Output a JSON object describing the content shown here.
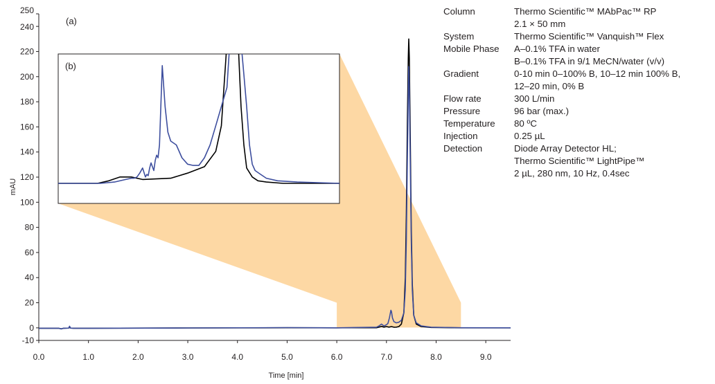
{
  "chart_data": {
    "type": "line",
    "xlabel": "Time [min]",
    "ylabel": "mAU",
    "xlim": [
      0.0,
      9.5
    ],
    "ylim": [
      -10,
      250
    ],
    "x_ticks": [
      "0.0",
      "1.0",
      "2.0",
      "3.0",
      "4.0",
      "5.0",
      "6.0",
      "7.0",
      "8.0",
      "9.0"
    ],
    "y_ticks": [
      "-10",
      "0",
      "20",
      "40",
      "60",
      "80",
      "100",
      "120",
      "140",
      "160",
      "180",
      "200",
      "220",
      "240",
      "250"
    ],
    "series": [
      {
        "color": "#000000",
        "x": [
          0.0,
          0.4,
          0.45,
          0.5,
          0.6,
          0.62,
          0.64,
          0.7,
          1.0,
          3.0,
          5.0,
          6.0,
          6.8,
          6.85,
          6.9,
          6.95,
          7.0,
          7.05,
          7.1,
          7.15,
          7.2,
          7.25,
          7.3,
          7.35,
          7.38,
          7.4,
          7.42,
          7.44,
          7.45,
          7.46,
          7.48,
          7.5,
          7.52,
          7.55,
          7.6,
          7.7,
          7.9,
          8.5,
          9.5
        ],
        "y": [
          -0.3,
          -0.3,
          -0.8,
          -0.3,
          -0.2,
          0.4,
          -0.2,
          -0.3,
          -0.3,
          -0.1,
          0.1,
          0.0,
          0.1,
          0.5,
          1.2,
          0.6,
          1.0,
          0.6,
          1.0,
          0.5,
          0.6,
          1.0,
          3.0,
          12.0,
          40.0,
          90.0,
          160.0,
          215.0,
          230.0,
          215.0,
          150.0,
          80.0,
          35.0,
          10.0,
          3.0,
          1.0,
          0.3,
          0.0,
          0.0
        ]
      },
      {
        "color": "#3d4e9e",
        "x": [
          0.0,
          0.4,
          0.45,
          0.5,
          0.6,
          0.62,
          0.64,
          0.7,
          1.0,
          3.0,
          5.0,
          6.0,
          6.8,
          6.85,
          6.9,
          6.95,
          7.0,
          7.03,
          7.06,
          7.09,
          7.1,
          7.12,
          7.15,
          7.2,
          7.25,
          7.3,
          7.35,
          7.38,
          7.4,
          7.42,
          7.44,
          7.45,
          7.46,
          7.48,
          7.5,
          7.52,
          7.55,
          7.6,
          7.7,
          7.9,
          8.5,
          9.5
        ],
        "y": [
          -0.3,
          -0.3,
          -0.8,
          -0.3,
          -0.2,
          1.3,
          -0.2,
          -0.3,
          -0.3,
          -0.1,
          0.2,
          0.0,
          0.5,
          1.5,
          3.0,
          1.5,
          2.5,
          3.5,
          8.0,
          14.0,
          13.0,
          8.0,
          5.0,
          4.0,
          4.5,
          6.0,
          12.0,
          30.0,
          70.0,
          130.0,
          185.0,
          208.0,
          190.0,
          130.0,
          70.0,
          30.0,
          10.0,
          4.0,
          1.5,
          0.5,
          0.1,
          0.0
        ]
      }
    ],
    "zoom_region": {
      "x": [
        6.0,
        8.5
      ]
    },
    "inset": {
      "label": "(b)",
      "series": [
        {
          "color": "#000000",
          "x": [
            0.0,
            0.06,
            0.1,
            0.14,
            0.18,
            0.22,
            0.26,
            0.3,
            0.4,
            0.46,
            0.52,
            0.56,
            0.58,
            0.6,
            0.61,
            0.62,
            0.63,
            0.64,
            0.65,
            0.66,
            0.67,
            0.69,
            0.71,
            0.74,
            0.8,
            0.9,
            1.0
          ],
          "y": [
            0.0,
            0.0,
            0.0,
            0.0,
            0.02,
            0.05,
            0.05,
            0.03,
            0.04,
            0.08,
            0.13,
            0.25,
            0.45,
            1.0,
            1.0,
            1.0,
            1.0,
            1.0,
            0.6,
            0.3,
            0.12,
            0.05,
            0.02,
            0.01,
            0.0,
            0.0,
            0.0
          ]
        },
        {
          "color": "#3d4e9e",
          "x": [
            0.0,
            0.15,
            0.2,
            0.24,
            0.26,
            0.27,
            0.28,
            0.29,
            0.3,
            0.31,
            0.315,
            0.32,
            0.325,
            0.33,
            0.34,
            0.345,
            0.35,
            0.355,
            0.36,
            0.37,
            0.38,
            0.39,
            0.4,
            0.42,
            0.44,
            0.46,
            0.48,
            0.5,
            0.52,
            0.54,
            0.56,
            0.58,
            0.6,
            0.61,
            0.62,
            0.63,
            0.64,
            0.65,
            0.66,
            0.67,
            0.68,
            0.69,
            0.7,
            0.72,
            0.74,
            0.78,
            0.85,
            1.0
          ],
          "y": [
            0.0,
            0.0,
            0.01,
            0.03,
            0.04,
            0.04,
            0.05,
            0.08,
            0.12,
            0.05,
            0.07,
            0.06,
            0.12,
            0.16,
            0.1,
            0.18,
            0.22,
            0.2,
            0.3,
            0.92,
            0.6,
            0.4,
            0.33,
            0.3,
            0.2,
            0.15,
            0.14,
            0.14,
            0.2,
            0.3,
            0.45,
            0.6,
            0.75,
            1.0,
            1.0,
            1.0,
            1.0,
            1.0,
            0.85,
            0.6,
            0.3,
            0.15,
            0.1,
            0.07,
            0.04,
            0.02,
            0.01,
            0.0
          ]
        }
      ]
    }
  },
  "labels": {
    "panel_a": "(a)"
  },
  "conditions": [
    {
      "label": "Column",
      "lines": [
        "Thermo Scientific™ MAbPac™ RP",
        "2.1 × 50 mm"
      ]
    },
    {
      "label": "System",
      "lines": [
        "Thermo Scientific™ Vanquish™ Flex"
      ]
    },
    {
      "label": "Mobile Phase",
      "lines": [
        "A–0.1% TFA in water",
        "B–0.1% TFA in 9/1 MeCN/water (v/v)"
      ]
    },
    {
      "label": "Gradient",
      "lines": [
        "0-10 min 0–100% B, 10–12 min 100% B,",
        "12–20 min, 0% B"
      ]
    },
    {
      "label": "Flow rate",
      "lines": [
        "300 L/min"
      ]
    },
    {
      "label": "Pressure",
      "lines": [
        "96 bar (max.)"
      ]
    },
    {
      "label": "Temperature",
      "lines": [
        "80 ºC"
      ]
    },
    {
      "label": "Injection",
      "lines": [
        "0.25 µL"
      ]
    },
    {
      "label": "Detection",
      "lines": [
        "Diode Array Detector HL;",
        "Thermo Scientific™ LightPipe™",
        "2 µL, 280 nm, 10 Hz, 0.4sec"
      ]
    }
  ],
  "colors": {
    "zoom_fill": "#fdd8a4",
    "axis": "#231f20",
    "trace_black": "#000000",
    "trace_blue": "#3d4e9e"
  }
}
